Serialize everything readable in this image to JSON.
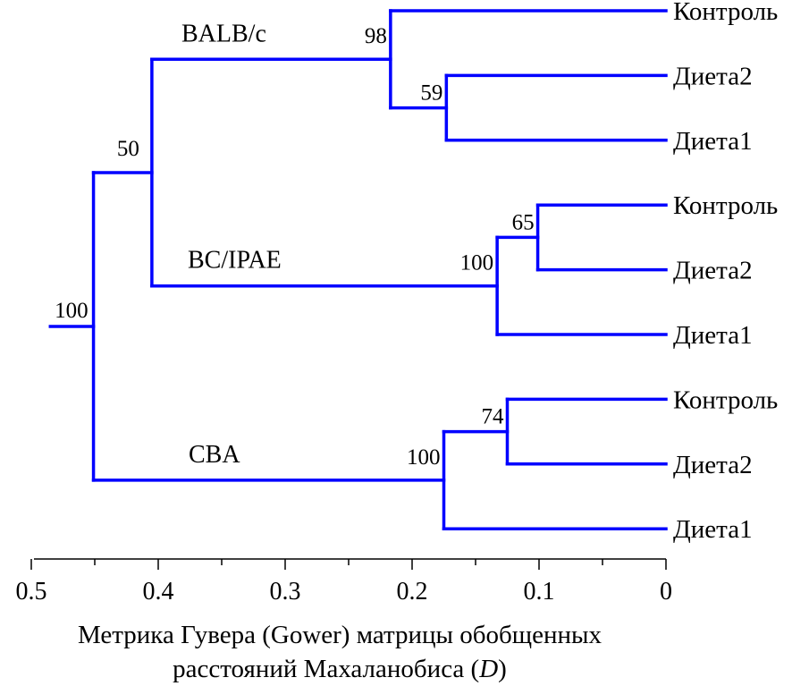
{
  "chart_data": {
    "type": "dendrogram",
    "xlabel_line1": "Метрика Гувера (Gower) матрицы обобщенных",
    "xlabel_line2_prefix": "расстояний Махаланобиса (",
    "xlabel_line2_var": "D",
    "xlabel_line2_suffix": ")",
    "xlim": [
      0.5,
      0
    ],
    "ticks": [
      {
        "value": 0.5,
        "label": "0.5"
      },
      {
        "value": 0.4,
        "label": "0.4"
      },
      {
        "value": 0.3,
        "label": "0.3"
      },
      {
        "value": 0.2,
        "label": "0.2"
      },
      {
        "value": 0.1,
        "label": "0.1"
      },
      {
        "value": 0.0,
        "label": "0"
      }
    ],
    "minor_ticks": [
      0.45,
      0.35,
      0.25,
      0.15,
      0.05
    ],
    "leaves": [
      "Контроль",
      "Диета2",
      "Диета1",
      "Контроль",
      "Диета2",
      "Диета1",
      "Контроль",
      "Диета2",
      "Диета1"
    ],
    "root_stub_height": 0.485,
    "nodes": [
      {
        "id": "b1",
        "height": 0.173,
        "children": [
          "L1",
          "L2"
        ],
        "support": "59"
      },
      {
        "id": "b2",
        "height": 0.217,
        "children": [
          "L0",
          "b1"
        ],
        "support": "98",
        "group": "BALB/c"
      },
      {
        "id": "c1",
        "height": 0.101,
        "children": [
          "L3",
          "L4"
        ],
        "support": "65"
      },
      {
        "id": "c2",
        "height": 0.133,
        "children": [
          "c1",
          "L5"
        ],
        "support": "100",
        "group": "BC/IPAE"
      },
      {
        "id": "u",
        "height": 0.405,
        "children": [
          "b2",
          "c2"
        ],
        "support": "50"
      },
      {
        "id": "d1",
        "height": 0.125,
        "children": [
          "L6",
          "L7"
        ],
        "support": "74"
      },
      {
        "id": "d2",
        "height": 0.175,
        "children": [
          "d1",
          "L8"
        ],
        "support": "100",
        "group": "CBA"
      },
      {
        "id": "root",
        "height": 0.451,
        "children": [
          "u",
          "d2"
        ],
        "support": "100"
      }
    ]
  }
}
